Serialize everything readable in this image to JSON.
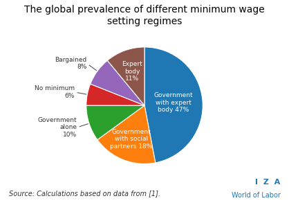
{
  "chart_data": {
    "type": "pie",
    "title": "The global prevalence of different minimum wage\nsetting regimes",
    "categories": [
      "Government\nwith expert\nbody 47%",
      "Government\nwith social\npartners 18%",
      "Government\nalone\n10%",
      "No minimum\n6%",
      "Bargained\n8%",
      "Expert\nbody\n11%"
    ],
    "values": [
      47,
      18,
      10,
      6,
      8,
      11
    ],
    "annotations": [
      "Source: Calculations based on data from [1].",
      "I  Z  A",
      "World of Labor"
    ]
  }
}
